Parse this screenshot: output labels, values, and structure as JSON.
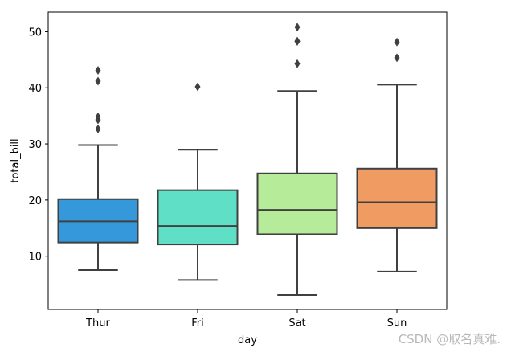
{
  "chart_data": {
    "type": "boxplot",
    "title": "",
    "xlabel": "day",
    "ylabel": "total_bill",
    "ylim": [
      0.5,
      53.5
    ],
    "yticks": [
      10,
      20,
      30,
      40,
      50
    ],
    "categories": [
      "Thur",
      "Fri",
      "Sat",
      "Sun"
    ],
    "boxes": [
      {
        "category": "Thur",
        "color": "#3498db",
        "whisker_low": 7.51,
        "q1": 12.44,
        "median": 16.2,
        "q3": 20.16,
        "whisker_high": 29.8,
        "outliers": [
          32.68,
          34.3,
          34.83,
          41.19,
          43.11
        ]
      },
      {
        "category": "Fri",
        "color": "#5fe0c6",
        "whisker_low": 5.75,
        "q1": 12.09,
        "median": 15.38,
        "q3": 21.75,
        "whisker_high": 28.97,
        "outliers": [
          40.17
        ]
      },
      {
        "category": "Sat",
        "color": "#b6eb9a",
        "whisker_low": 3.07,
        "q1": 13.9,
        "median": 18.24,
        "q3": 24.74,
        "whisker_high": 39.42,
        "outliers": [
          44.3,
          48.27,
          48.33,
          50.81
        ]
      },
      {
        "category": "Sun",
        "color": "#ef9b62",
        "whisker_low": 7.25,
        "q1": 14.99,
        "median": 19.63,
        "q3": 25.6,
        "whisker_high": 40.55,
        "outliers": [
          45.35,
          48.17
        ]
      }
    ]
  },
  "watermark": "CSDN @取名真难."
}
